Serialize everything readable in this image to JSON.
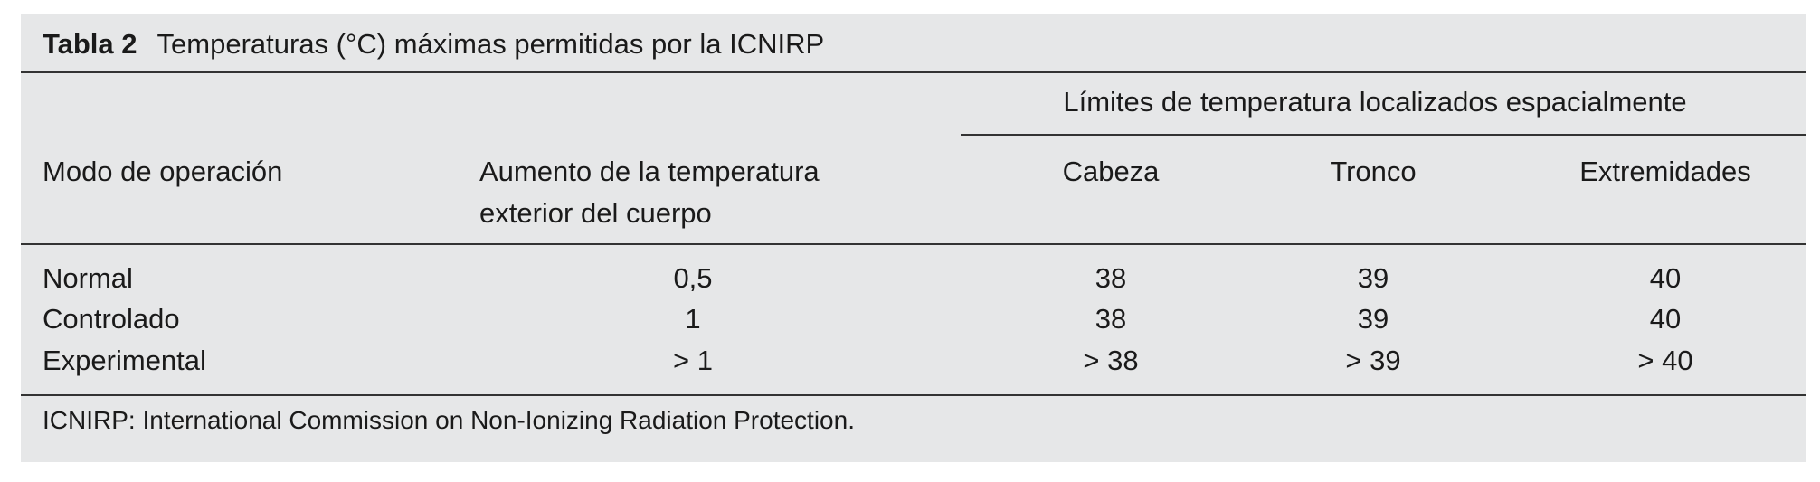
{
  "caption": {
    "label": "Tabla 2",
    "text": "Temperaturas (°C) máximas permitidas por la ICNIRP"
  },
  "table": {
    "group_header": "Límites de temperatura localizados espacialmente",
    "columns": [
      "Modo de operación",
      [
        "Aumento de la temperatura",
        "exterior del cuerpo"
      ],
      "Cabeza",
      "Tronco",
      "Extremidades"
    ],
    "rows": [
      [
        "Normal",
        "0,5",
        "38",
        "39",
        "40"
      ],
      [
        "Controlado",
        "1",
        "38",
        "39",
        "40"
      ],
      [
        "Experimental",
        "> 1",
        "> 38",
        "> 39",
        "> 40"
      ]
    ]
  },
  "footnote": "ICNIRP: International Commission on Non-Ionizing Radiation Protection."
}
